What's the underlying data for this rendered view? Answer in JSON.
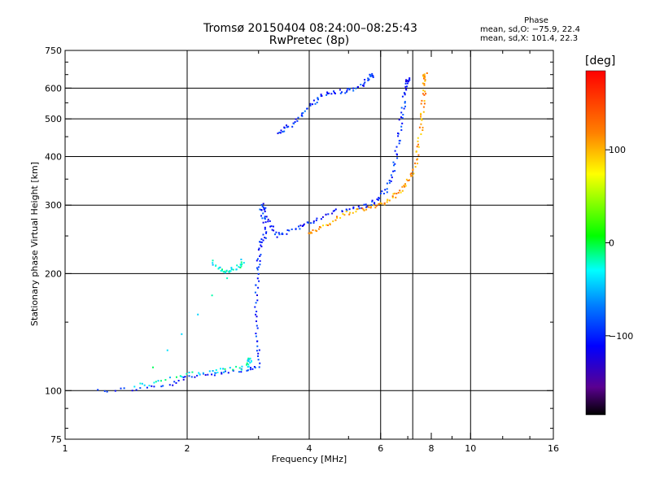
{
  "header": {
    "title_line1": "Tromsø 20150404 08:24:00–08:25:43",
    "title_line2": "RwPretec (8p)"
  },
  "phase_box": {
    "title": "Phase",
    "line_o": "mean, sd,O: −75.9, 22.4",
    "line_x": "mean, sd,X: 101.4, 22.3"
  },
  "colorbar": {
    "unit_label": "[deg]",
    "ticks": [
      {
        "value": 100,
        "label": "100"
      },
      {
        "value": 0,
        "label": "0"
      },
      {
        "value": -100,
        "label": "−100"
      }
    ],
    "range": [
      -185,
      185
    ]
  },
  "chart_data": {
    "type": "scatter",
    "title": "Tromsø 20150404 08:24:00–08:25:43",
    "subtitle": "RwPretec (8p)",
    "xlabel": "Frequency [MHz]",
    "ylabel": "Stationary phase Virtual Height [km]",
    "x_scale": "log",
    "y_scale": "log",
    "xlim": [
      1,
      16
    ],
    "ylim": [
      75,
      750
    ],
    "x_ticks": [
      1,
      2,
      4,
      6,
      8,
      10,
      16
    ],
    "x_tick_labels": [
      "1",
      "2",
      "4",
      "6",
      "8",
      "10",
      "16"
    ],
    "x_grid": [
      2,
      4,
      6,
      7.2,
      10
    ],
    "y_ticks": [
      75,
      100,
      200,
      300,
      400,
      500,
      600,
      750
    ],
    "y_tick_labels": [
      "75",
      "100",
      "200",
      "300",
      "400",
      "500",
      "600",
      "750"
    ],
    "grid": true,
    "color_scale": "phase [deg], rainbow from black (−185) through blue, cyan, green, yellow to red (+185)",
    "traces": [
      {
        "name": "O-mode trace (blue, about −100 deg)",
        "phase_deg": -100,
        "points": [
          [
            1.2,
            100
          ],
          [
            1.5,
            101
          ],
          [
            1.8,
            103
          ],
          [
            2.0,
            108
          ],
          [
            2.2,
            110
          ],
          [
            2.5,
            112
          ],
          [
            2.8,
            113
          ],
          [
            3.0,
            115
          ],
          [
            3.0,
            130
          ],
          [
            2.95,
            150
          ],
          [
            2.95,
            175
          ],
          [
            2.98,
            200
          ],
          [
            3.0,
            220
          ],
          [
            3.05,
            240
          ],
          [
            3.1,
            250
          ],
          [
            3.1,
            275
          ],
          [
            3.05,
            290
          ],
          [
            3.1,
            300
          ],
          [
            3.2,
            270
          ],
          [
            3.3,
            250
          ],
          [
            3.5,
            255
          ],
          [
            3.8,
            265
          ],
          [
            4.0,
            270
          ],
          [
            4.3,
            280
          ],
          [
            4.7,
            290
          ],
          [
            5.2,
            295
          ],
          [
            5.6,
            300
          ],
          [
            5.9,
            310
          ],
          [
            6.2,
            330
          ],
          [
            6.4,
            360
          ],
          [
            6.55,
            400
          ],
          [
            6.65,
            450
          ],
          [
            6.75,
            500
          ],
          [
            6.85,
            550
          ],
          [
            6.95,
            600
          ],
          [
            7.0,
            630
          ]
        ]
      },
      {
        "name": "upper O-mode trace (blue)",
        "phase_deg": -95,
        "points": [
          [
            3.35,
            460
          ],
          [
            3.5,
            470
          ],
          [
            3.7,
            490
          ],
          [
            3.9,
            520
          ],
          [
            4.1,
            550
          ],
          [
            4.3,
            575
          ],
          [
            4.6,
            585
          ],
          [
            4.9,
            590
          ],
          [
            5.2,
            600
          ],
          [
            5.5,
            620
          ],
          [
            5.7,
            645
          ]
        ]
      },
      {
        "name": "X-mode trace (orange/yellow, about +110 deg)",
        "phase_deg": 110,
        "points": [
          [
            4.0,
            255
          ],
          [
            4.2,
            260
          ],
          [
            4.5,
            270
          ],
          [
            4.9,
            285
          ],
          [
            5.3,
            292
          ],
          [
            5.7,
            297
          ],
          [
            6.0,
            302
          ],
          [
            6.3,
            310
          ],
          [
            6.6,
            320
          ],
          [
            6.9,
            335
          ],
          [
            7.1,
            355
          ],
          [
            7.3,
            380
          ],
          [
            7.45,
            420
          ],
          [
            7.55,
            470
          ],
          [
            7.6,
            520
          ],
          [
            7.65,
            570
          ],
          [
            7.7,
            620
          ],
          [
            7.72,
            650
          ]
        ]
      },
      {
        "name": "cyan low trace (about −30 deg)",
        "phase_deg": -30,
        "points": [
          [
            2.3,
            215
          ],
          [
            2.4,
            205
          ],
          [
            2.5,
            203
          ],
          [
            2.6,
            205
          ],
          [
            2.7,
            210
          ],
          [
            2.75,
            215
          ],
          [
            1.5,
            103
          ],
          [
            1.7,
            105
          ],
          [
            2.0,
            110
          ],
          [
            2.3,
            112
          ],
          [
            2.5,
            113
          ],
          [
            2.8,
            115
          ],
          [
            2.85,
            120
          ]
        ]
      }
    ]
  }
}
